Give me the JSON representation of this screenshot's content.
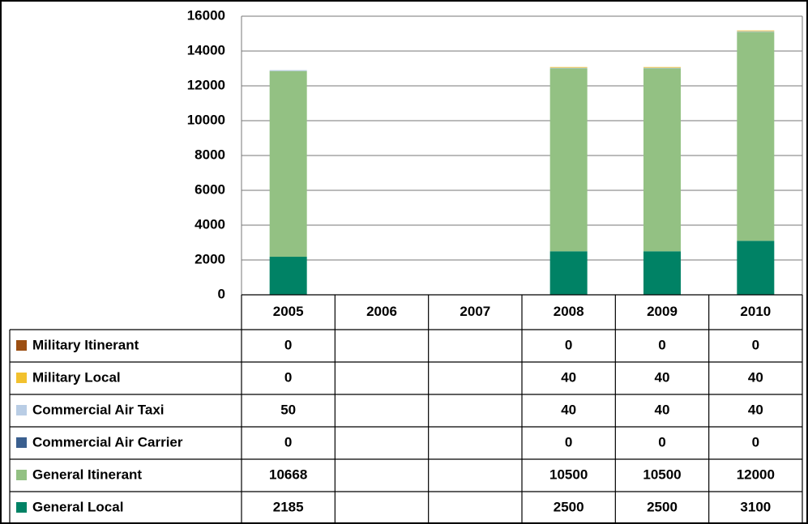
{
  "chart_data": {
    "type": "stacked-bar",
    "categories": [
      "2005",
      "2006",
      "2007",
      "2008",
      "2009",
      "2010"
    ],
    "series": [
      {
        "name": "Military Itinerant",
        "color": "#9c4f12",
        "values": [
          0,
          null,
          null,
          0,
          0,
          0
        ]
      },
      {
        "name": "Military Local",
        "color": "#f2c12e",
        "values": [
          0,
          null,
          null,
          40,
          40,
          40
        ]
      },
      {
        "name": "Commercial Air Taxi",
        "color": "#b9cde5",
        "values": [
          50,
          null,
          null,
          40,
          40,
          40
        ]
      },
      {
        "name": "Commercial Air Carrier",
        "color": "#3a5f8f",
        "values": [
          0,
          null,
          null,
          0,
          0,
          0
        ]
      },
      {
        "name": "General Itinerant",
        "color": "#93c183",
        "values": [
          10668,
          null,
          null,
          10500,
          10500,
          12000
        ]
      },
      {
        "name": "General Local",
        "color": "#008265",
        "values": [
          2185,
          null,
          null,
          2500,
          2500,
          3100
        ]
      }
    ],
    "ylim": [
      0,
      16000
    ],
    "yticks": [
      0,
      2000,
      4000,
      6000,
      8000,
      10000,
      12000,
      14000,
      16000
    ],
    "grid": true
  }
}
